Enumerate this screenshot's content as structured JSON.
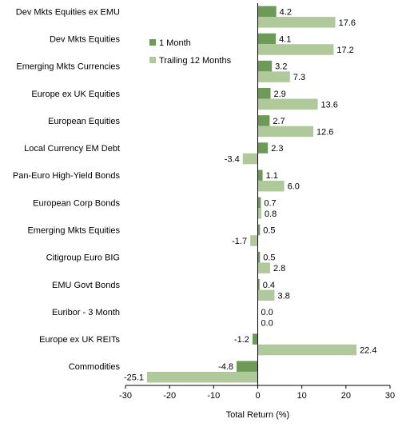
{
  "chart_data": {
    "type": "bar",
    "orientation": "horizontal",
    "categories": [
      "Dev Mkts Equities ex EMU",
      "Dev Mkts Equities",
      "Emerging Mkts Currencies",
      "Europe ex UK Equities",
      "European Equities",
      "Local Currency EM Debt",
      "Pan-Euro High-Yield Bonds",
      "European Corp Bonds",
      "Emerging Mkts Equities",
      "Citigroup Euro BIG",
      "EMU Govt Bonds",
      "Euribor - 3 Month",
      "Europe ex UK REITs",
      "Commodities"
    ],
    "series": [
      {
        "name": "1 Month",
        "color": "#6e9a57",
        "values": [
          4.2,
          4.1,
          3.2,
          2.9,
          2.7,
          2.3,
          1.1,
          0.7,
          0.5,
          0.5,
          0.4,
          0.0,
          -1.2,
          -4.8
        ],
        "labels": [
          "4.2",
          "4.1",
          "3.2",
          "2.9",
          "2.7",
          "2.3",
          "1.1",
          "0.7",
          "0.5",
          "0.5",
          "0.4",
          "0.0",
          "-1.2",
          "-4.8"
        ]
      },
      {
        "name": "Trailing 12 Months",
        "color": "#b0c99b",
        "values": [
          17.6,
          17.2,
          7.3,
          13.6,
          12.6,
          -3.4,
          6.0,
          0.8,
          -1.7,
          2.8,
          3.8,
          0.0,
          22.4,
          -25.1
        ],
        "labels": [
          "17.6",
          "17.2",
          "7.3",
          "13.6",
          "12.6",
          "-3.4",
          "6.0",
          "0.8",
          "-1.7",
          "2.8",
          "3.8",
          "0.0",
          "22.4",
          "-25.1"
        ]
      }
    ],
    "xlabel": "Total Return (%)",
    "xlim": [
      -30,
      30
    ],
    "xticks": [
      -30,
      -20,
      -10,
      0,
      10,
      20,
      30
    ],
    "xtick_labels": [
      "-30",
      "-20",
      "-10",
      "0",
      "10",
      "20",
      "30"
    ],
    "grid": false,
    "legend_position": "top-left of plot area"
  }
}
